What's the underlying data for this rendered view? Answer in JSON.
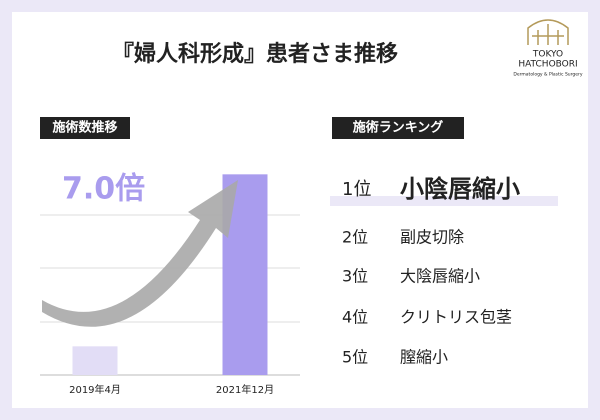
{
  "header": {
    "title": "『婦人科形成』患者さま推移"
  },
  "logo": {
    "line1": "TOKYO",
    "line2": "HATCHOBORI",
    "tagline": "Dermatology & Plastic Surgery"
  },
  "chart_data": {
    "type": "bar",
    "title": "施術数推移",
    "annotation": "7.0倍",
    "categories": [
      "2019年4月",
      "2021年12月"
    ],
    "values": [
      1,
      7
    ],
    "colors": [
      "#e2ddf6",
      "#a99cee"
    ],
    "ylim": [
      0,
      7.5
    ]
  },
  "ranking": {
    "title": "施術ランキング",
    "items": [
      {
        "rank": "1位",
        "name": "小陰唇縮小"
      },
      {
        "rank": "2位",
        "name": "副皮切除"
      },
      {
        "rank": "3位",
        "name": "大陰唇縮小"
      },
      {
        "rank": "4位",
        "name": "クリトリス包茎"
      },
      {
        "rank": "5位",
        "name": "膣縮小"
      }
    ]
  }
}
